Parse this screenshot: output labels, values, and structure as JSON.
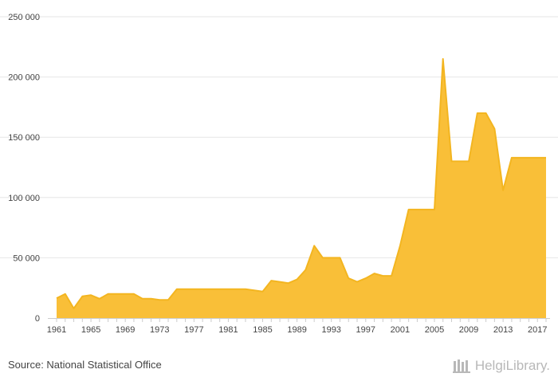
{
  "chart_data": {
    "type": "area",
    "x": [
      1961,
      1962,
      1963,
      1964,
      1965,
      1966,
      1967,
      1968,
      1969,
      1970,
      1971,
      1972,
      1973,
      1974,
      1975,
      1976,
      1977,
      1978,
      1979,
      1980,
      1981,
      1982,
      1983,
      1984,
      1985,
      1986,
      1987,
      1988,
      1989,
      1990,
      1991,
      1992,
      1993,
      1994,
      1995,
      1996,
      1997,
      1998,
      1999,
      2000,
      2001,
      2002,
      2003,
      2004,
      2005,
      2006,
      2007,
      2008,
      2009,
      2010,
      2011,
      2012,
      2013,
      2014,
      2015,
      2016,
      2017,
      2018
    ],
    "values": [
      16500,
      20000,
      8000,
      18000,
      19000,
      16000,
      20000,
      20000,
      20000,
      20000,
      16000,
      16000,
      15000,
      15000,
      24000,
      24000,
      24000,
      24000,
      24000,
      24000,
      24000,
      24000,
      24000,
      23000,
      22000,
      31000,
      30000,
      29000,
      32000,
      40000,
      60000,
      50000,
      50000,
      50000,
      33000,
      30000,
      33000,
      37000,
      35000,
      35000,
      60000,
      90000,
      90000,
      90000,
      90000,
      215000,
      130000,
      130000,
      130000,
      170000,
      170000,
      157000,
      106000,
      133000,
      133000,
      133000,
      133000,
      133000
    ],
    "x_tick_labels": [
      "1961",
      "1965",
      "1969",
      "1973",
      "1977",
      "1981",
      "1985",
      "1989",
      "1993",
      "1997",
      "2001",
      "2005",
      "2009",
      "2013",
      "2017"
    ],
    "y_tick_labels": [
      "0",
      "50 000",
      "100 000",
      "150 000",
      "200 000",
      "250 000"
    ],
    "ylim": [
      0,
      250000
    ],
    "xlim": [
      1961,
      2018
    ],
    "grid": true,
    "colors": {
      "fill": "#F9BF38",
      "line": "#F3B520",
      "grid": "#E6E6E6",
      "axis": "#CCCCCC"
    }
  },
  "footer": {
    "source": "Source: National Statistical Office",
    "brand": "HelgiLibrary."
  }
}
